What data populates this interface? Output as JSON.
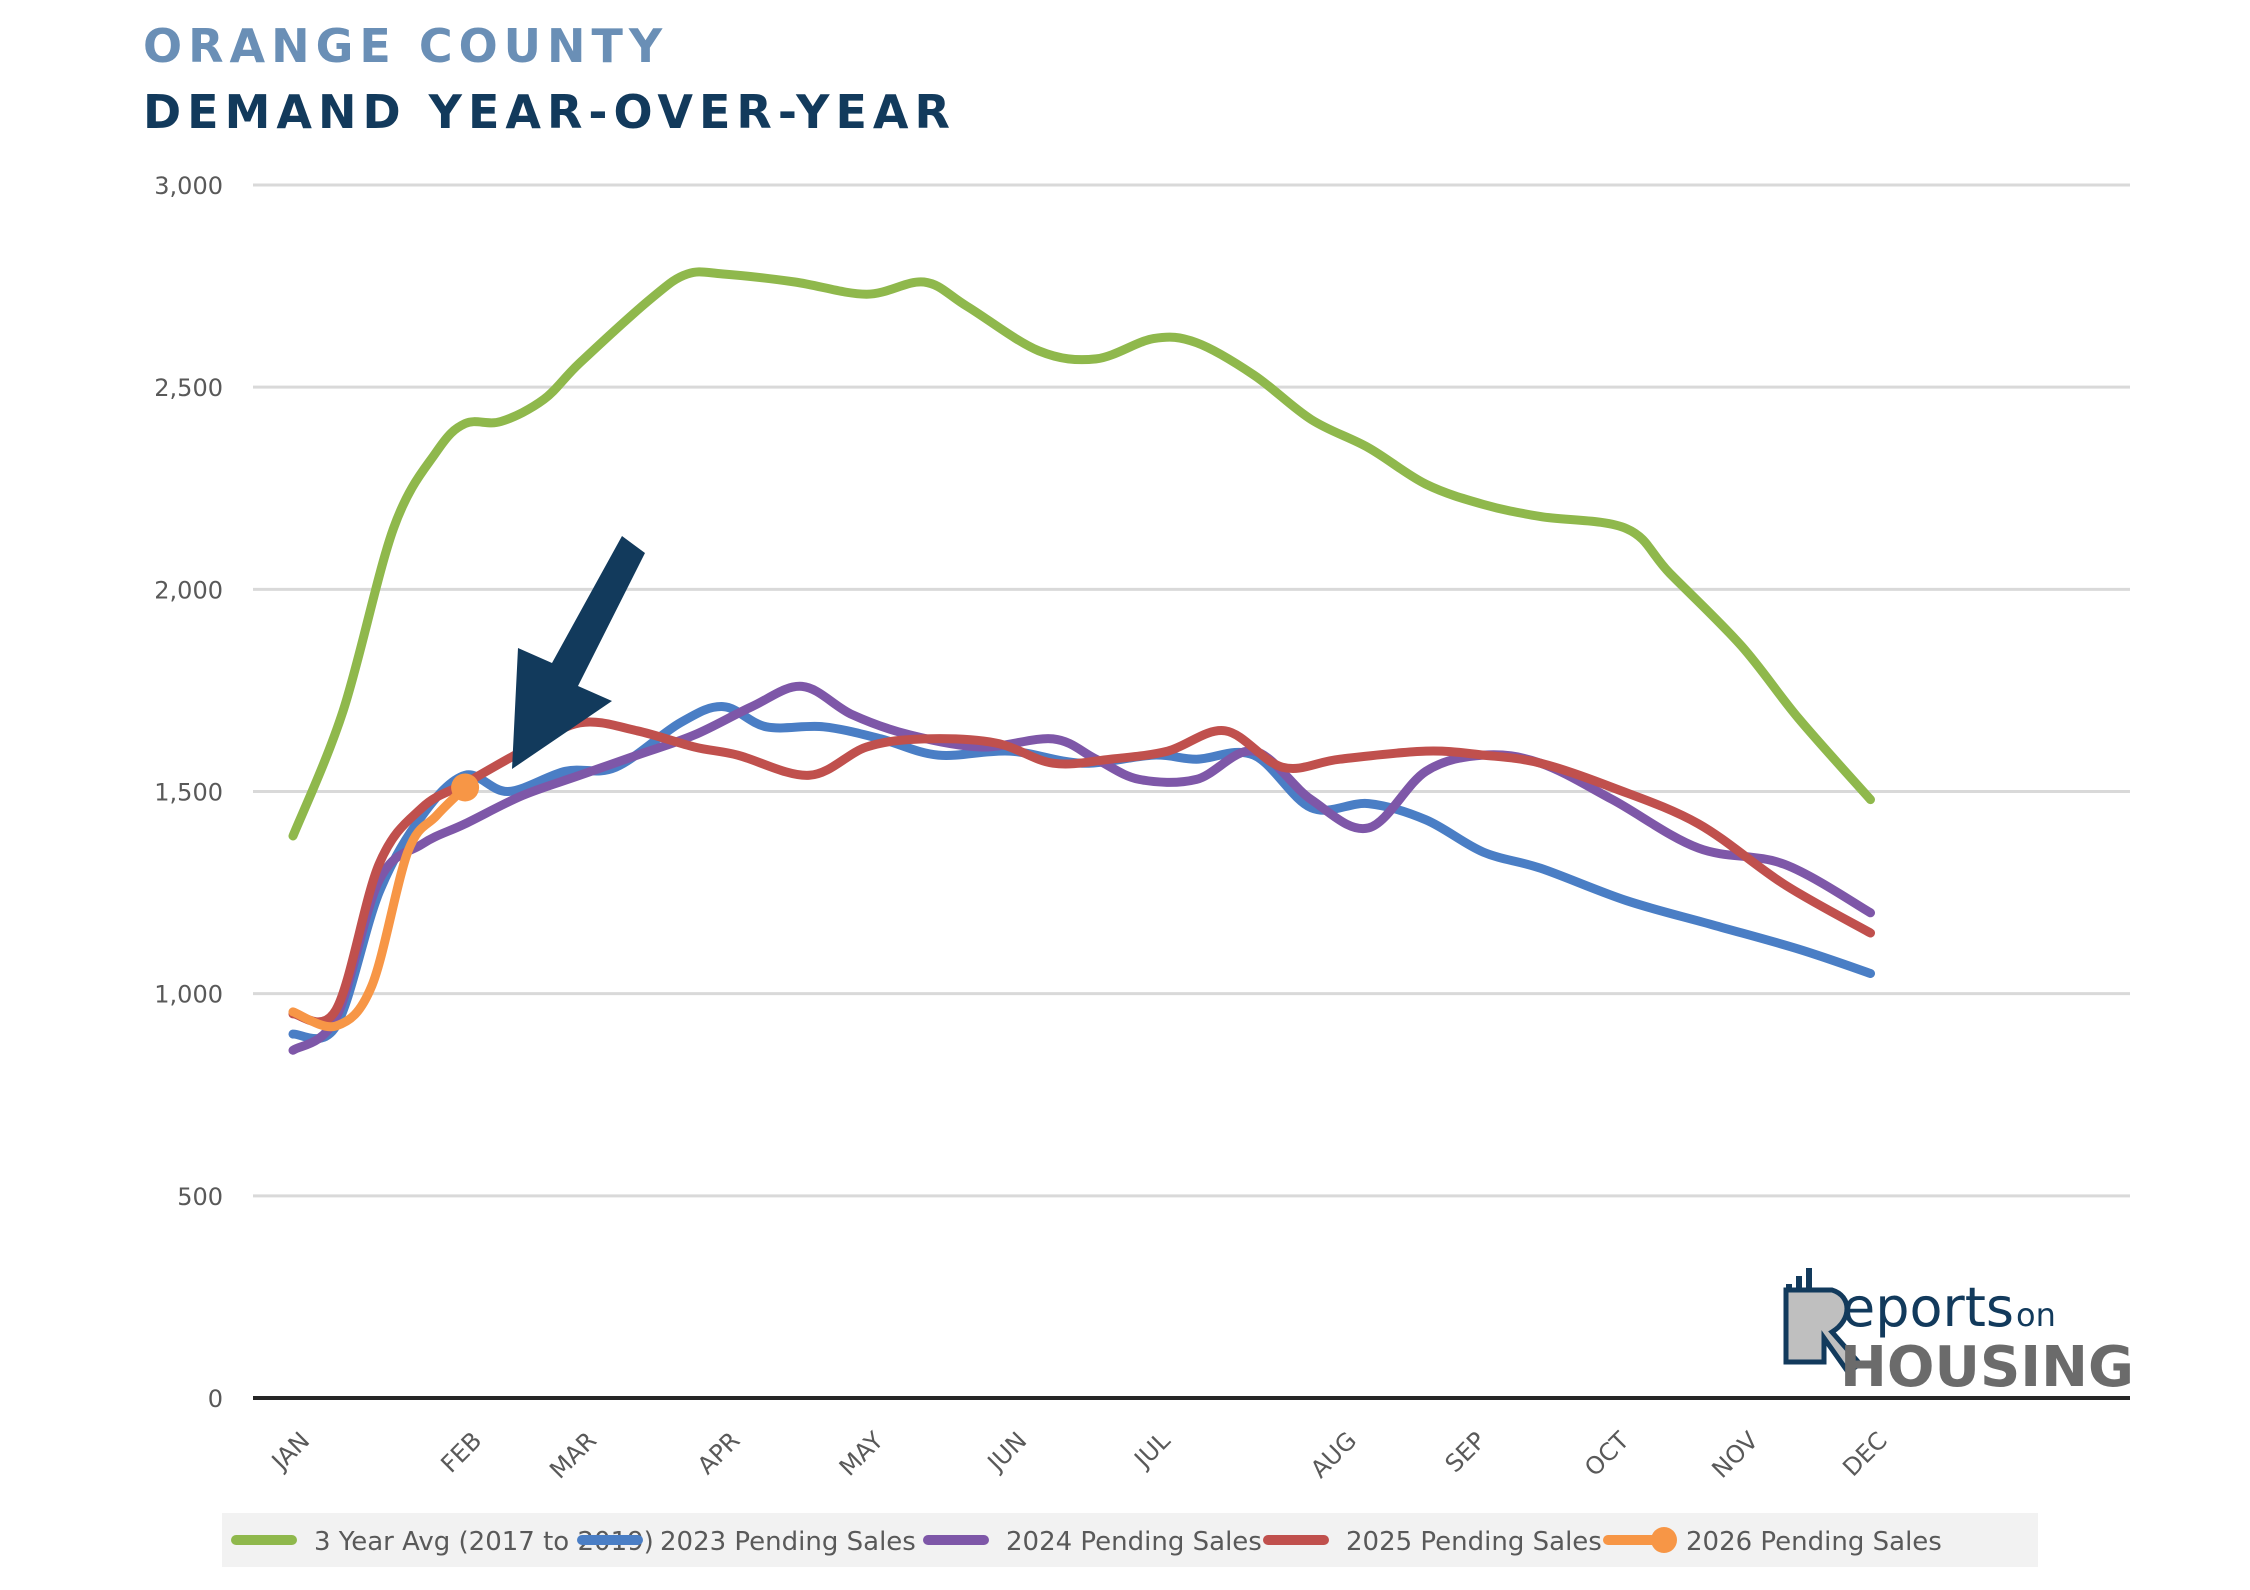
{
  "header": {
    "subtitle": "ORANGE COUNTY",
    "title": "DEMAND YEAR-OVER-YEAR"
  },
  "logo": {
    "brand_part1": "eports",
    "brand_on": "on",
    "brand_part2": "HOUSING"
  },
  "chart_data": {
    "type": "line",
    "title": "DEMAND YEAR-OVER-YEAR",
    "xlabel": "",
    "ylabel": "",
    "ylim": [
      0,
      3000
    ],
    "yticks": [
      0,
      500,
      1000,
      1500,
      2000,
      2500,
      3000
    ],
    "ytick_labels": [
      "0",
      "500",
      "1,000",
      "1,500",
      "2,000",
      "2,500",
      "3,000"
    ],
    "grid": true,
    "legend_position": "bottom",
    "xlim": [
      1,
      13
    ],
    "month_ticks": [
      {
        "label": "JAN",
        "x": 1.0
      },
      {
        "label": "FEB",
        "x": 2.2
      },
      {
        "label": "MAR",
        "x": 3.0
      },
      {
        "label": "APR",
        "x": 4.0
      },
      {
        "label": "MAY",
        "x": 5.0
      },
      {
        "label": "JUN",
        "x": 6.0
      },
      {
        "label": "JUL",
        "x": 7.0
      },
      {
        "label": "AUG",
        "x": 8.3
      },
      {
        "label": "SEP",
        "x": 9.2
      },
      {
        "label": "OCT",
        "x": 10.2
      },
      {
        "label": "NOV",
        "x": 11.1
      },
      {
        "label": "DEC",
        "x": 12.0
      }
    ],
    "series": [
      {
        "name": "3 Year Avg (2017 to 2019)",
        "color": "#8fb84c",
        "points": [
          [
            1.0,
            1390
          ],
          [
            1.35,
            1700
          ],
          [
            1.7,
            2150
          ],
          [
            2.0,
            2340
          ],
          [
            2.2,
            2410
          ],
          [
            2.45,
            2415
          ],
          [
            2.75,
            2470
          ],
          [
            3.0,
            2560
          ],
          [
            3.5,
            2720
          ],
          [
            3.75,
            2780
          ],
          [
            4.0,
            2780
          ],
          [
            4.5,
            2760
          ],
          [
            5.0,
            2730
          ],
          [
            5.4,
            2760
          ],
          [
            5.7,
            2700
          ],
          [
            6.2,
            2590
          ],
          [
            6.6,
            2570
          ],
          [
            7.0,
            2620
          ],
          [
            7.3,
            2610
          ],
          [
            7.7,
            2530
          ],
          [
            8.1,
            2420
          ],
          [
            8.5,
            2350
          ],
          [
            8.9,
            2260
          ],
          [
            9.3,
            2210
          ],
          [
            9.7,
            2180
          ],
          [
            10.3,
            2150
          ],
          [
            10.6,
            2040
          ],
          [
            11.1,
            1860
          ],
          [
            11.5,
            1680
          ],
          [
            12.0,
            1480
          ]
        ]
      },
      {
        "name": "2023 Pending Sales",
        "color": "#4a7ec5",
        "points": [
          [
            1.0,
            900
          ],
          [
            1.3,
            920
          ],
          [
            1.6,
            1250
          ],
          [
            1.9,
            1440
          ],
          [
            2.2,
            1540
          ],
          [
            2.5,
            1500
          ],
          [
            2.9,
            1550
          ],
          [
            3.25,
            1560
          ],
          [
            3.7,
            1670
          ],
          [
            4.0,
            1710
          ],
          [
            4.3,
            1660
          ],
          [
            4.7,
            1660
          ],
          [
            5.1,
            1630
          ],
          [
            5.5,
            1590
          ],
          [
            6.0,
            1600
          ],
          [
            6.5,
            1570
          ],
          [
            7.0,
            1590
          ],
          [
            7.3,
            1580
          ],
          [
            7.7,
            1590
          ],
          [
            8.1,
            1460
          ],
          [
            8.5,
            1470
          ],
          [
            8.9,
            1430
          ],
          [
            9.3,
            1350
          ],
          [
            9.7,
            1310
          ],
          [
            10.3,
            1230
          ],
          [
            10.9,
            1170
          ],
          [
            11.5,
            1110
          ],
          [
            12.0,
            1050
          ]
        ]
      },
      {
        "name": "2024 Pending Sales",
        "color": "#7e57a8",
        "points": [
          [
            1.0,
            860
          ],
          [
            1.3,
            940
          ],
          [
            1.6,
            1280
          ],
          [
            1.9,
            1370
          ],
          [
            2.2,
            1420
          ],
          [
            2.6,
            1490
          ],
          [
            3.0,
            1540
          ],
          [
            3.4,
            1590
          ],
          [
            3.8,
            1640
          ],
          [
            4.2,
            1710
          ],
          [
            4.55,
            1760
          ],
          [
            4.9,
            1690
          ],
          [
            5.3,
            1640
          ],
          [
            5.8,
            1610
          ],
          [
            6.3,
            1630
          ],
          [
            6.6,
            1580
          ],
          [
            6.9,
            1530
          ],
          [
            7.3,
            1530
          ],
          [
            7.7,
            1600
          ],
          [
            8.1,
            1480
          ],
          [
            8.5,
            1410
          ],
          [
            8.9,
            1550
          ],
          [
            9.3,
            1590
          ],
          [
            9.7,
            1570
          ],
          [
            10.2,
            1480
          ],
          [
            10.8,
            1360
          ],
          [
            11.4,
            1320
          ],
          [
            12.0,
            1200
          ]
        ]
      },
      {
        "name": "2025 Pending Sales",
        "color": "#c0504d",
        "points": [
          [
            1.0,
            950
          ],
          [
            1.3,
            960
          ],
          [
            1.6,
            1320
          ],
          [
            1.9,
            1460
          ],
          [
            2.2,
            1520
          ],
          [
            2.6,
            1600
          ],
          [
            3.0,
            1670
          ],
          [
            3.4,
            1650
          ],
          [
            3.8,
            1610
          ],
          [
            4.1,
            1590
          ],
          [
            4.6,
            1540
          ],
          [
            5.0,
            1610
          ],
          [
            5.4,
            1630
          ],
          [
            5.9,
            1620
          ],
          [
            6.3,
            1570
          ],
          [
            6.7,
            1580
          ],
          [
            7.1,
            1600
          ],
          [
            7.5,
            1650
          ],
          [
            7.9,
            1560
          ],
          [
            8.3,
            1580
          ],
          [
            8.9,
            1600
          ],
          [
            9.3,
            1590
          ],
          [
            9.7,
            1570
          ],
          [
            10.2,
            1510
          ],
          [
            10.8,
            1420
          ],
          [
            11.4,
            1270
          ],
          [
            12.0,
            1150
          ]
        ]
      },
      {
        "name": "2026 Pending Sales",
        "color": "#f79646",
        "points": [
          [
            1.0,
            955
          ],
          [
            1.3,
            920
          ],
          [
            1.55,
            1020
          ],
          [
            1.8,
            1350
          ],
          [
            2.0,
            1440
          ],
          [
            2.2,
            1510
          ]
        ]
      }
    ]
  }
}
